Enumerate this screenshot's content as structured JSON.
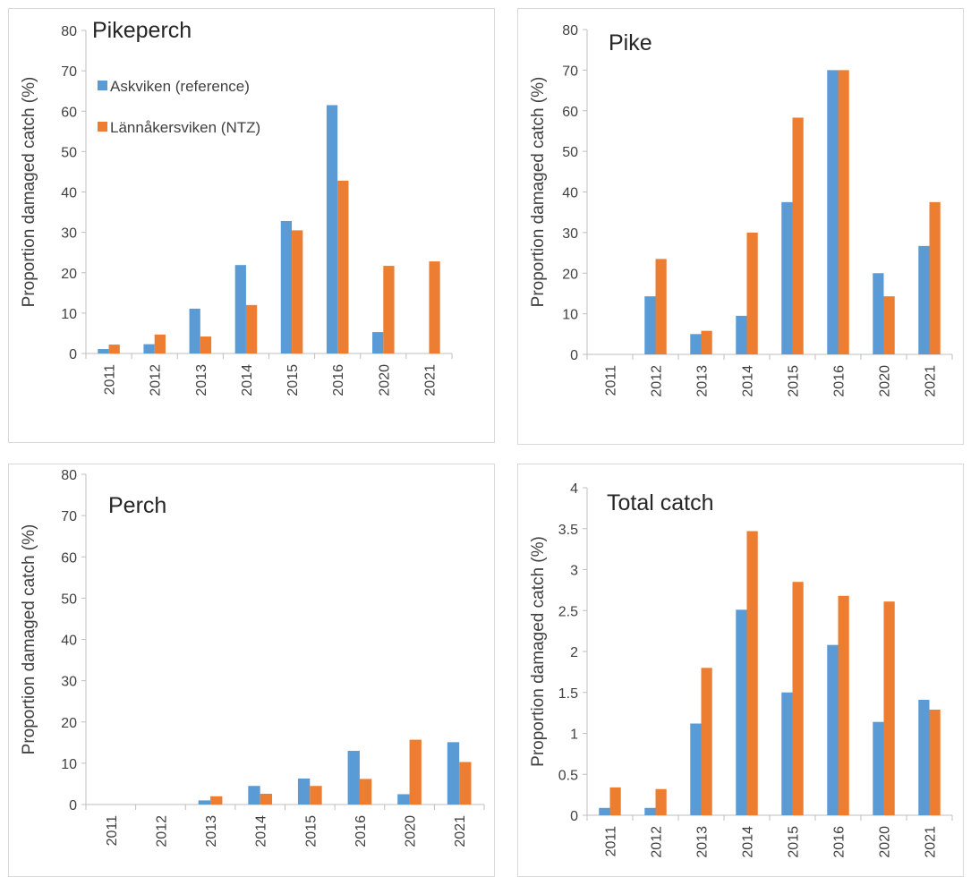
{
  "colors": {
    "askviken": "#5b9bd5",
    "lannakersviken": "#ed7d31",
    "axis": "#bfbfbf",
    "frame": "#d9d9d9"
  },
  "legend": {
    "askviken": "Askviken (reference)",
    "lannakersviken": "Lännåkersviken (NTZ)"
  },
  "chart_data": [
    {
      "type": "bar",
      "title": "Pikeperch",
      "ylabel": "Proportion damaged catch (%)",
      "ylim": [
        0,
        80
      ],
      "yticks": [
        "0",
        "10",
        "20",
        "30",
        "40",
        "50",
        "60",
        "70",
        "80"
      ],
      "categories": [
        "2011",
        "2012",
        "2013",
        "2014",
        "2015",
        "2016",
        "2020",
        "2021"
      ],
      "series": [
        {
          "name": "Askviken (reference)",
          "values": [
            1.1,
            2.3,
            11.1,
            21.9,
            32.8,
            61.5,
            5.3,
            0
          ]
        },
        {
          "name": "Lännåkersviken (NTZ)",
          "values": [
            2.2,
            4.7,
            4.2,
            12.0,
            30.5,
            42.8,
            21.7,
            22.8
          ]
        }
      ],
      "legend": "top-left"
    },
    {
      "type": "bar",
      "title": "Pike",
      "ylabel": "Proportion damaged catch (%)",
      "ylim": [
        0,
        80
      ],
      "yticks": [
        "0",
        "10",
        "20",
        "30",
        "40",
        "50",
        "60",
        "70",
        "80"
      ],
      "categories": [
        "2011",
        "2012",
        "2013",
        "2014",
        "2015",
        "2016",
        "2020",
        "2021"
      ],
      "series": [
        {
          "name": "Askviken (reference)",
          "values": [
            0,
            14.3,
            5.0,
            9.5,
            37.5,
            70.0,
            20.0,
            26.7
          ]
        },
        {
          "name": "Lännåkersviken (NTZ)",
          "values": [
            0,
            23.5,
            5.8,
            30.0,
            58.3,
            70.0,
            14.3,
            37.5
          ]
        }
      ]
    },
    {
      "type": "bar",
      "title": "Perch",
      "ylabel": "Proportion damaged catch (%)",
      "ylim": [
        0,
        80
      ],
      "yticks": [
        "0",
        "10",
        "20",
        "30",
        "40",
        "50",
        "60",
        "70",
        "80"
      ],
      "categories": [
        "2011",
        "2012",
        "2013",
        "2014",
        "2015",
        "2016",
        "2020",
        "2021"
      ],
      "series": [
        {
          "name": "Askviken (reference)",
          "values": [
            0,
            0,
            1.0,
            4.5,
            6.3,
            13.0,
            2.5,
            15.1
          ]
        },
        {
          "name": "Lännåkersviken (NTZ)",
          "values": [
            0,
            0,
            2.0,
            2.6,
            4.5,
            6.2,
            15.7,
            10.3
          ]
        }
      ]
    },
    {
      "type": "bar",
      "title": "Total catch",
      "ylabel": "Proportion damaged catch (%)",
      "ylim": [
        0,
        4
      ],
      "yticks": [
        "0",
        "0.5",
        "1",
        "1.5",
        "2",
        "2.5",
        "3",
        "3.5",
        "4"
      ],
      "categories": [
        "2011",
        "2012",
        "2013",
        "2014",
        "2015",
        "2016",
        "2020",
        "2021"
      ],
      "series": [
        {
          "name": "Askviken (reference)",
          "values": [
            0.09,
            0.09,
            1.12,
            2.51,
            1.5,
            2.08,
            1.14,
            1.41
          ]
        },
        {
          "name": "Lännåkersviken (NTZ)",
          "values": [
            0.34,
            0.32,
            1.8,
            3.47,
            2.85,
            2.68,
            2.61,
            1.29
          ]
        }
      ]
    }
  ]
}
